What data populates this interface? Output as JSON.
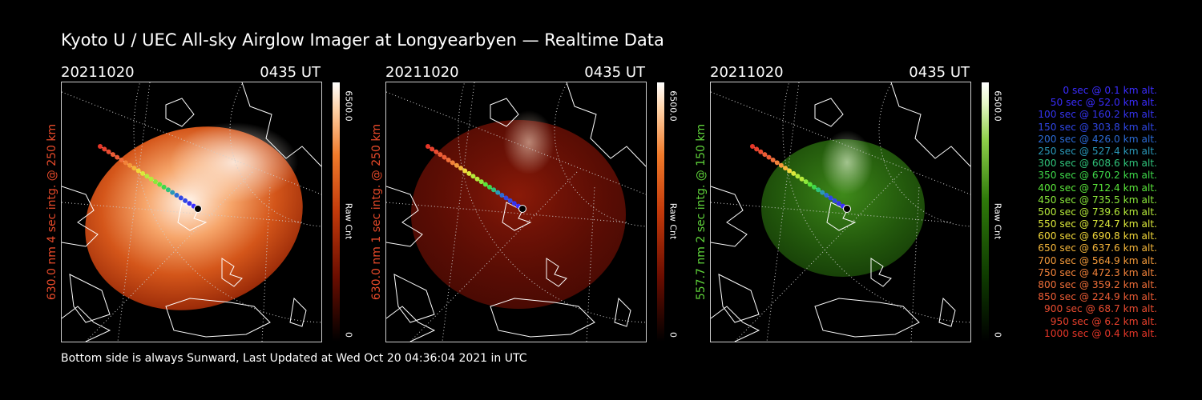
{
  "title": "Kyoto U / UEC All-sky Airglow Imager at Longyearbyen — Realtime Data",
  "footer": "Bottom side is always Sunward, Last Updated at Wed Oct 20 04:36:04 2021 in UTC",
  "panels": [
    {
      "date": "20211020",
      "time": "0435 UT",
      "side_label": "630.0 nm 4 sec intg. @ 250 km",
      "side_color": "#e84a2a",
      "cbar_max": "6500.0",
      "cbar_min": "0",
      "cbar_unit": "Raw Cnt",
      "scheme": "orange"
    },
    {
      "date": "20211020",
      "time": "0435 UT",
      "side_label": "630.0 nm 1 sec intg. @ 250 km",
      "side_color": "#e84a2a",
      "cbar_max": "6500.0",
      "cbar_min": "0",
      "cbar_unit": "Raw Cnt",
      "scheme": "red"
    },
    {
      "date": "20211020",
      "time": "0435 UT",
      "side_label": "557.7 nm 2 sec intg. @ 150 km",
      "side_color": "#5fd33a",
      "cbar_max": "6500.0",
      "cbar_min": "0",
      "cbar_unit": "Raw Cnt",
      "scheme": "green"
    }
  ],
  "legend": [
    {
      "text": "0 sec @   0.1 km alt.",
      "color": "#3a2cff"
    },
    {
      "text": "50 sec @  52.0 km alt.",
      "color": "#3a2cff"
    },
    {
      "text": "100 sec @ 160.2 km alt.",
      "color": "#3433ee"
    },
    {
      "text": "150 sec @ 303.8 km alt.",
      "color": "#2f46e6"
    },
    {
      "text": "200 sec @ 426.0 km alt.",
      "color": "#2b6bd6"
    },
    {
      "text": "250 sec @ 527.4 km alt.",
      "color": "#2a98b8"
    },
    {
      "text": "300 sec @ 608.6 km alt.",
      "color": "#2fc37a"
    },
    {
      "text": "350 sec @ 670.2 km alt.",
      "color": "#3ed94a"
    },
    {
      "text": "400 sec @ 712.4 km alt.",
      "color": "#5ae63a"
    },
    {
      "text": "450 sec @ 735.5 km alt.",
      "color": "#8ae83a"
    },
    {
      "text": "500 sec @ 739.6 km alt.",
      "color": "#b6ea3a"
    },
    {
      "text": "550 sec @ 724.7 km alt.",
      "color": "#dbe83a"
    },
    {
      "text": "600 sec @ 690.8 km alt.",
      "color": "#f2d83a"
    },
    {
      "text": "650 sec @ 637.6 km alt.",
      "color": "#f4b63a"
    },
    {
      "text": "700 sec @ 564.9 km alt.",
      "color": "#f49a3a"
    },
    {
      "text": "750 sec @ 472.3 km alt.",
      "color": "#f2823a"
    },
    {
      "text": "800 sec @ 359.2 km alt.",
      "color": "#ef6e38"
    },
    {
      "text": "850 sec @ 224.9 km alt.",
      "color": "#ec5c34"
    },
    {
      "text": "900 sec @  68.7 km alt.",
      "color": "#ea4c30"
    },
    {
      "text": "950 sec @   6.2 km alt.",
      "color": "#e8402c"
    },
    {
      "text": "1000 sec @   0.4 km alt.",
      "color": "#e63628"
    }
  ]
}
